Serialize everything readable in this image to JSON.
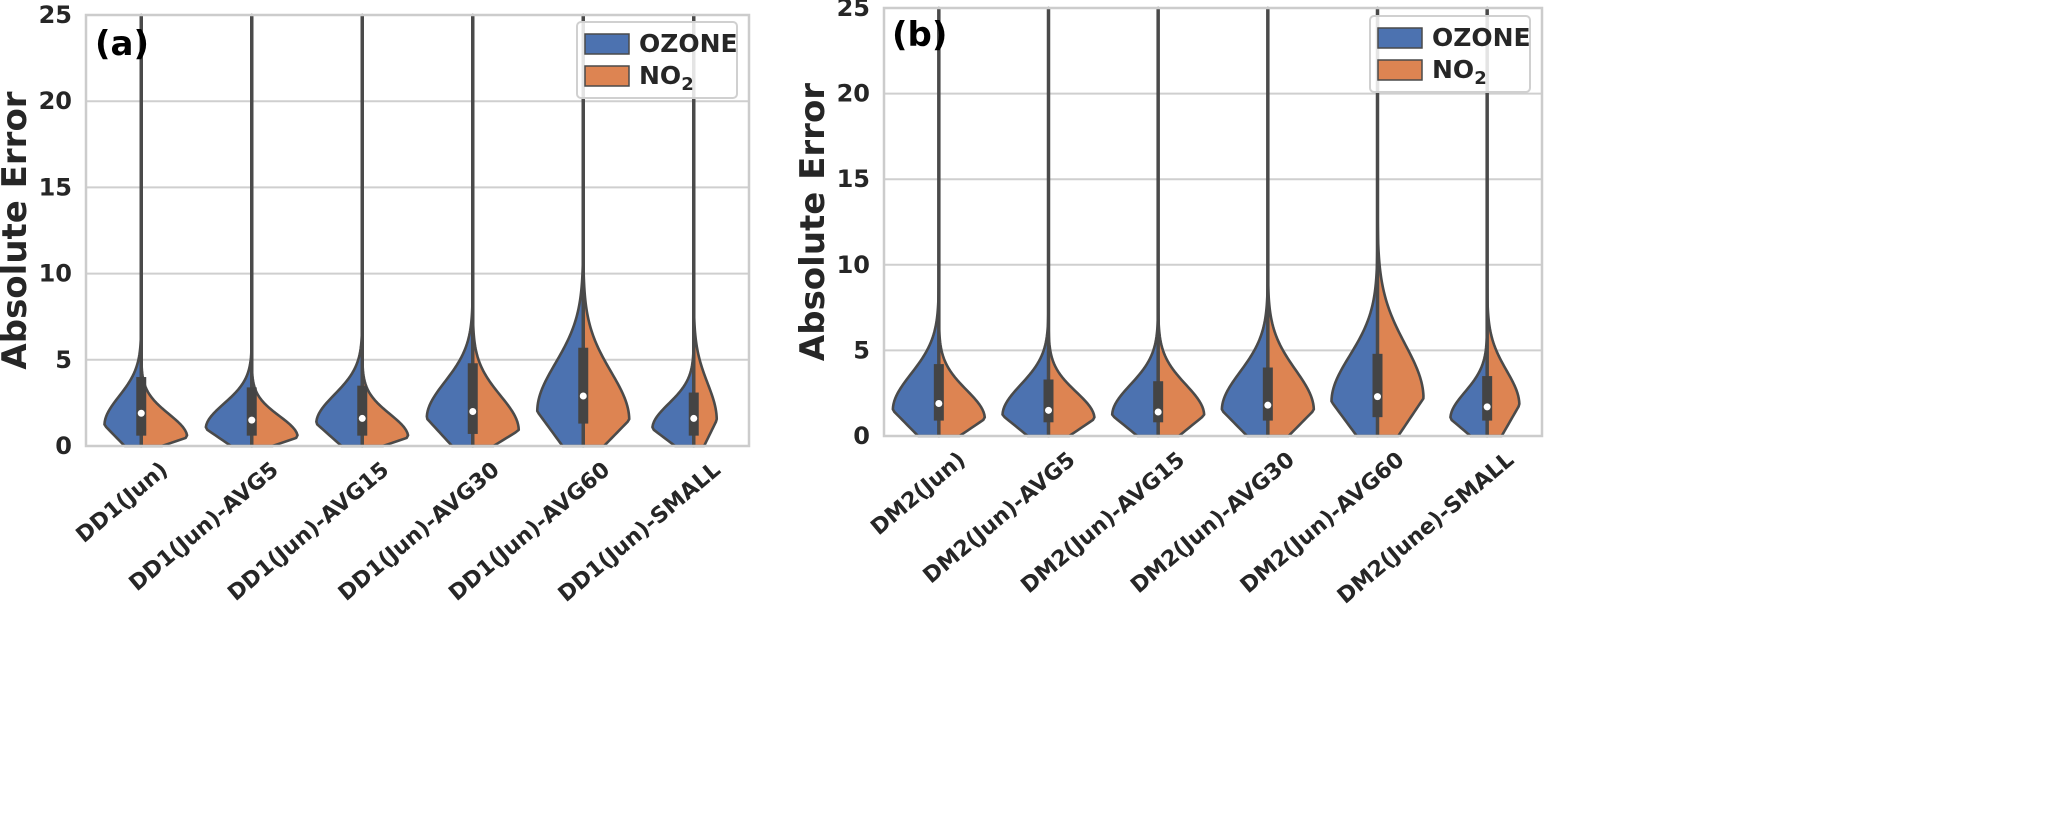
{
  "figure": {
    "colors": {
      "ozone": "#4C72B0",
      "no2": "#DD8452",
      "outline": "#4a4a4a",
      "grid": "#cfcfcf",
      "frame": "#cccccc"
    }
  },
  "chart_data": [
    {
      "type": "violin",
      "panel_label": "(a)",
      "ylabel": "Absolute Error",
      "ylim": [
        0,
        25
      ],
      "yticks": [
        0,
        5,
        10,
        15,
        20,
        25
      ],
      "grid": true,
      "legend": {
        "position": "top-right",
        "entries": [
          {
            "name": "OZONE"
          },
          {
            "base": "NO",
            "sub": "2"
          }
        ]
      },
      "categories": [
        "DD1(Jun)",
        "DD1(Jun)-AVG5",
        "DD1(Jun)-AVG15",
        "DD1(Jun)-AVG30",
        "DD1(Jun)-AVG60",
        "DD1(Jun)-SMALL"
      ],
      "series": [
        {
          "name": "OZONE",
          "max": [
            25,
            25,
            25,
            25,
            25,
            25
          ],
          "mode": [
            1.2,
            1.0,
            1.3,
            1.6,
            2.0,
            1.0
          ],
          "spread": [
            3.0,
            2.6,
            3.0,
            3.8,
            5.0,
            2.6
          ],
          "width": [
            0.8,
            1.0,
            1.0,
            1.0,
            1.0,
            0.9
          ]
        },
        {
          "name": "NO2",
          "max": [
            25,
            25,
            25,
            25,
            25,
            25
          ],
          "mode": [
            0.5,
            0.5,
            0.5,
            0.9,
            1.5,
            1.5
          ],
          "spread": [
            2.4,
            2.2,
            2.4,
            3.6,
            5.0,
            3.8
          ],
          "width": [
            1.0,
            1.0,
            1.0,
            1.0,
            1.0,
            0.5
          ]
        }
      ],
      "box": {
        "q1": [
          0.6,
          0.6,
          0.6,
          0.7,
          1.3,
          0.6
        ],
        "median": [
          1.9,
          1.5,
          1.6,
          2.0,
          2.9,
          1.6
        ],
        "q3": [
          4.0,
          3.4,
          3.5,
          4.8,
          5.7,
          3.1
        ]
      }
    },
    {
      "type": "violin",
      "panel_label": "(b)",
      "ylabel": "Absolute Error",
      "ylim": [
        0,
        25
      ],
      "yticks": [
        0,
        5,
        10,
        15,
        20,
        25
      ],
      "grid": true,
      "legend": {
        "position": "top-right",
        "entries": [
          {
            "name": "OZONE"
          },
          {
            "base": "NO",
            "sub": "2"
          }
        ]
      },
      "categories": [
        "DM2(Jun)",
        "DM2(Jun)-AVG5",
        "DM2(Jun)-AVG15",
        "DM2(Jun)-AVG30",
        "DM2(Jun)-AVG60",
        "DM2(June)-SMALL"
      ],
      "series": [
        {
          "name": "OZONE",
          "max": [
            25,
            25,
            25,
            25,
            25,
            25
          ],
          "mode": [
            1.5,
            1.2,
            1.2,
            1.5,
            2.0,
            1.0
          ],
          "spread": [
            3.8,
            3.2,
            3.2,
            4.0,
            4.8,
            2.8
          ],
          "width": [
            1.0,
            1.0,
            1.0,
            1.0,
            1.0,
            0.8
          ]
        },
        {
          "name": "NO2",
          "max": [
            25,
            25,
            25,
            25,
            25,
            25
          ],
          "mode": [
            1.0,
            1.0,
            1.2,
            1.5,
            2.2,
            1.8
          ],
          "spread": [
            3.0,
            2.8,
            3.2,
            4.2,
            5.6,
            3.6
          ],
          "width": [
            1.0,
            1.0,
            1.0,
            1.0,
            1.0,
            0.7
          ]
        }
      ],
      "box": {
        "q1": [
          0.9,
          0.8,
          0.8,
          0.9,
          1.1,
          0.9
        ],
        "median": [
          1.9,
          1.5,
          1.4,
          1.8,
          2.3,
          1.7
        ],
        "q3": [
          4.2,
          3.3,
          3.2,
          4.0,
          4.8,
          3.5
        ]
      }
    }
  ]
}
